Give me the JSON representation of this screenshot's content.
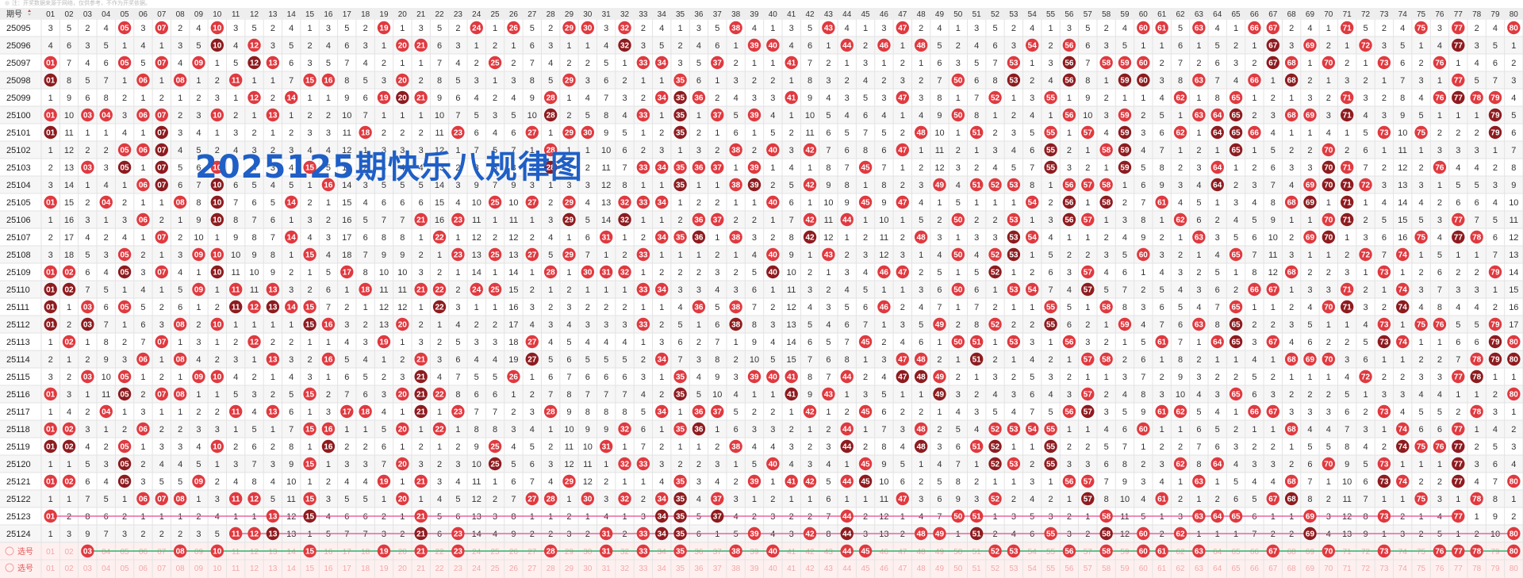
{
  "top_note": "注：开奖数据来源于网络，仅供参考，不作为开奖依据。",
  "overlay_title": "2025125期快乐八规律图",
  "table": {
    "header_issue": "期号",
    "numbers_count": 80,
    "rows": [
      {
        "issue": "25095",
        "hits": [
          5,
          7,
          10,
          19,
          24,
          26,
          29,
          30,
          32,
          38,
          43,
          47,
          60,
          61,
          63,
          66,
          67,
          71,
          75,
          77,
          80
        ]
      },
      {
        "issue": "25096",
        "hits": [
          10,
          12,
          20,
          21,
          32,
          39,
          40,
          44,
          46,
          48,
          54,
          56,
          67,
          69,
          72,
          77
        ]
      },
      {
        "issue": "25097",
        "hits": [
          1,
          5,
          7,
          9,
          12,
          13,
          25,
          33,
          34,
          37,
          41,
          53,
          56,
          58,
          59,
          60,
          67,
          68,
          70,
          73,
          76
        ]
      },
      {
        "issue": "25098",
        "hits": [
          1,
          6,
          8,
          11,
          15,
          16,
          20,
          29,
          35,
          50,
          53,
          56,
          59,
          60,
          63,
          66,
          68,
          77
        ]
      },
      {
        "issue": "25099",
        "hits": [
          12,
          14,
          19,
          20,
          21,
          28,
          34,
          35,
          36,
          41,
          47,
          52,
          55,
          62,
          65,
          71,
          76,
          77,
          78,
          79
        ]
      },
      {
        "issue": "25100",
        "hits": [
          1,
          3,
          4,
          6,
          7,
          10,
          13,
          28,
          33,
          35,
          37,
          39,
          50,
          56,
          59,
          63,
          64,
          65,
          68,
          69,
          71,
          79
        ]
      },
      {
        "issue": "25101",
        "hits": [
          1,
          7,
          18,
          23,
          27,
          29,
          30,
          35,
          48,
          51,
          55,
          57,
          59,
          62,
          64,
          65,
          66,
          73,
          75,
          79
        ]
      },
      {
        "issue": "25102",
        "hits": [
          5,
          6,
          7,
          28,
          38,
          40,
          42,
          47,
          55,
          58,
          59,
          65,
          70
        ]
      },
      {
        "issue": "25103",
        "hits": [
          3,
          5,
          7,
          10,
          15,
          28,
          33,
          34,
          35,
          36,
          37,
          39,
          45,
          55,
          59,
          64,
          70,
          71,
          76
        ]
      },
      {
        "issue": "25104",
        "hits": [
          6,
          7,
          10,
          16,
          35,
          38,
          39,
          42,
          49,
          51,
          52,
          53,
          56,
          57,
          58,
          64,
          69,
          70,
          71,
          72
        ]
      },
      {
        "issue": "25105",
        "hits": [
          1,
          4,
          8,
          10,
          14,
          25,
          27,
          29,
          32,
          33,
          34,
          40,
          45,
          47,
          54,
          56,
          58,
          61,
          68,
          69,
          71
        ]
      },
      {
        "issue": "25106",
        "hits": [
          6,
          10,
          21,
          23,
          29,
          32,
          36,
          37,
          42,
          44,
          50,
          53,
          56,
          57,
          62,
          70,
          71,
          77
        ]
      },
      {
        "issue": "25107",
        "hits": [
          7,
          14,
          22,
          31,
          34,
          35,
          36,
          38,
          42,
          48,
          53,
          54,
          63,
          69,
          70,
          75,
          77,
          78
        ]
      },
      {
        "issue": "25108",
        "hits": [
          5,
          9,
          10,
          15,
          23,
          25,
          27,
          29,
          33,
          40,
          43,
          50,
          52,
          53,
          60,
          65,
          72,
          74
        ]
      },
      {
        "issue": "25109",
        "hits": [
          1,
          2,
          5,
          7,
          10,
          17,
          28,
          30,
          31,
          32,
          40,
          46,
          47,
          52,
          57,
          68,
          73,
          79
        ]
      },
      {
        "issue": "25110",
        "hits": [
          1,
          2,
          9,
          11,
          13,
          18,
          21,
          22,
          24,
          25,
          33,
          34,
          50,
          53,
          54,
          57,
          66,
          67,
          71,
          74
        ]
      },
      {
        "issue": "25111",
        "hits": [
          1,
          3,
          5,
          11,
          12,
          13,
          14,
          15,
          22,
          36,
          38,
          46,
          55,
          58,
          65,
          70,
          71,
          74
        ]
      },
      {
        "issue": "25112",
        "hits": [
          1,
          3,
          8,
          10,
          15,
          16,
          20,
          33,
          38,
          49,
          52,
          55,
          59,
          63,
          65,
          73,
          75,
          76,
          79
        ]
      },
      {
        "issue": "25113",
        "hits": [
          2,
          7,
          12,
          19,
          27,
          45,
          50,
          51,
          53,
          56,
          61,
          64,
          65,
          67,
          73,
          74,
          79,
          80
        ]
      },
      {
        "issue": "25114",
        "hits": [
          6,
          8,
          13,
          16,
          21,
          27,
          34,
          47,
          48,
          51,
          57,
          58,
          68,
          69,
          70,
          78,
          79,
          80
        ]
      },
      {
        "issue": "25115",
        "hits": [
          3,
          5,
          9,
          10,
          21,
          26,
          35,
          39,
          40,
          41,
          44,
          47,
          48,
          49,
          72,
          77,
          78
        ]
      },
      {
        "issue": "25116",
        "hits": [
          1,
          5,
          7,
          8,
          15,
          20,
          21,
          22,
          35,
          41,
          43,
          49,
          57,
          65,
          80
        ]
      },
      {
        "issue": "25117",
        "hits": [
          4,
          11,
          13,
          17,
          18,
          21,
          23,
          28,
          34,
          36,
          37,
          42,
          45,
          56,
          57,
          61,
          62,
          66,
          67,
          73,
          78
        ]
      },
      {
        "issue": "25118",
        "hits": [
          1,
          2,
          6,
          15,
          16,
          20,
          22,
          32,
          35,
          36,
          44,
          48,
          52,
          53,
          54,
          55,
          60,
          68,
          74,
          77
        ]
      },
      {
        "issue": "25119",
        "hits": [
          1,
          2,
          5,
          10,
          16,
          25,
          31,
          38,
          44,
          48,
          51,
          52,
          55,
          74,
          75,
          76,
          77
        ]
      },
      {
        "issue": "25120",
        "hits": [
          5,
          15,
          20,
          25,
          32,
          33,
          40,
          45,
          52,
          53,
          55,
          62,
          64,
          70,
          73,
          77
        ]
      },
      {
        "issue": "25121",
        "hits": [
          1,
          2,
          5,
          9,
          19,
          21,
          29,
          35,
          39,
          41,
          42,
          44,
          45,
          56,
          57,
          63,
          68,
          73,
          74,
          77,
          80
        ]
      },
      {
        "issue": "25122",
        "hits": [
          6,
          7,
          8,
          11,
          12,
          15,
          20,
          27,
          28,
          30,
          32,
          34,
          35,
          37,
          47,
          52,
          57,
          61,
          67,
          68,
          75,
          78
        ]
      },
      {
        "issue": "25123",
        "hits": [
          1,
          13,
          15,
          21,
          34,
          35,
          37,
          44,
          50,
          51,
          58,
          63,
          64,
          65,
          69,
          73,
          77
        ]
      },
      {
        "issue": "25124",
        "hits": [
          11,
          12,
          13,
          21,
          23,
          31,
          33,
          34,
          35,
          39,
          42,
          44,
          48,
          49,
          51,
          55,
          58,
          60,
          62,
          69,
          80
        ]
      }
    ],
    "select_label": "选号",
    "pick_row": {
      "label": "选号",
      "picks": [
        3,
        8,
        10,
        15,
        19,
        21,
        23,
        28,
        31,
        33,
        35,
        38,
        40,
        44,
        45,
        52,
        53,
        56,
        58,
        60,
        61,
        63,
        67,
        70,
        73,
        76,
        77,
        78,
        80
      ]
    },
    "bottom_row_label": "选号"
  },
  "colors": {
    "ball_red": "#e0393f",
    "ball_dark": "#8e1b1f",
    "pick_green": "#2db36a",
    "line_pink": "#e84888",
    "header_bg": "#eeeeee",
    "grid": "#e3e3e3"
  }
}
